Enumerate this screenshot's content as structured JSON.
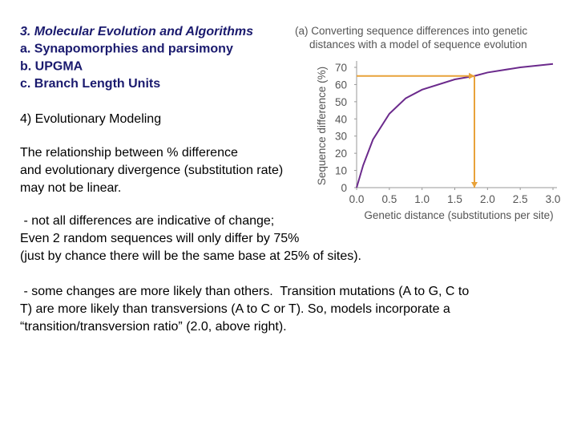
{
  "slide": {
    "heading": [
      "3. Molecular Evolution and Algorithms",
      "a.  Synapomorphies and parsimony",
      "b. UPGMA",
      "c. Branch Length Units"
    ],
    "section": "4) Evolutionary Modeling",
    "paragraphs": [
      [
        "The relationship between % difference",
        "and evolutionary divergence (substitution rate)",
        "may not be linear."
      ],
      [
        " - not all differences are indicative of change;",
        "Even 2 random sequences will only differ by 75%",
        "(just by chance there will be the same base at 25% of sites)."
      ],
      [
        " - some changes are more likely than others.  Transition mutations (A to G, C to",
        "T) are more likely than transversions (A to C or T). So, models incorporate a",
        "“transition/transversion ratio” (2.0, above right)."
      ]
    ]
  },
  "chart_data": {
    "type": "line",
    "title": [
      "(a) Converting sequence differences into genetic",
      "distances with a model of sequence evolution"
    ],
    "xlabel": "Genetic distance (substitutions per site)",
    "ylabel": "Sequence difference (%)",
    "x": [
      0,
      0.1,
      0.25,
      0.5,
      0.75,
      1,
      1.5,
      1.8,
      2,
      2.5,
      3
    ],
    "series": [
      {
        "color": "#6b2a8c",
        "values": [
          0,
          13,
          28,
          43,
          52,
          57,
          63,
          65,
          67,
          70,
          72
        ]
      }
    ],
    "highlight": {
      "x": 1.8,
      "y": 65,
      "color": "#e8a23a"
    },
    "xlim": [
      0,
      3
    ],
    "ylim": [
      0,
      70
    ],
    "xticks": [
      {
        "value": 0,
        "label": "0.0"
      },
      0.5,
      {
        "value": 1,
        "label": "1.0"
      },
      1.5,
      {
        "value": 2,
        "label": "2.0"
      },
      2.5,
      {
        "value": 3,
        "label": "3.0"
      }
    ],
    "yticks": [
      0,
      10,
      20,
      30,
      40,
      50,
      60,
      70
    ]
  }
}
